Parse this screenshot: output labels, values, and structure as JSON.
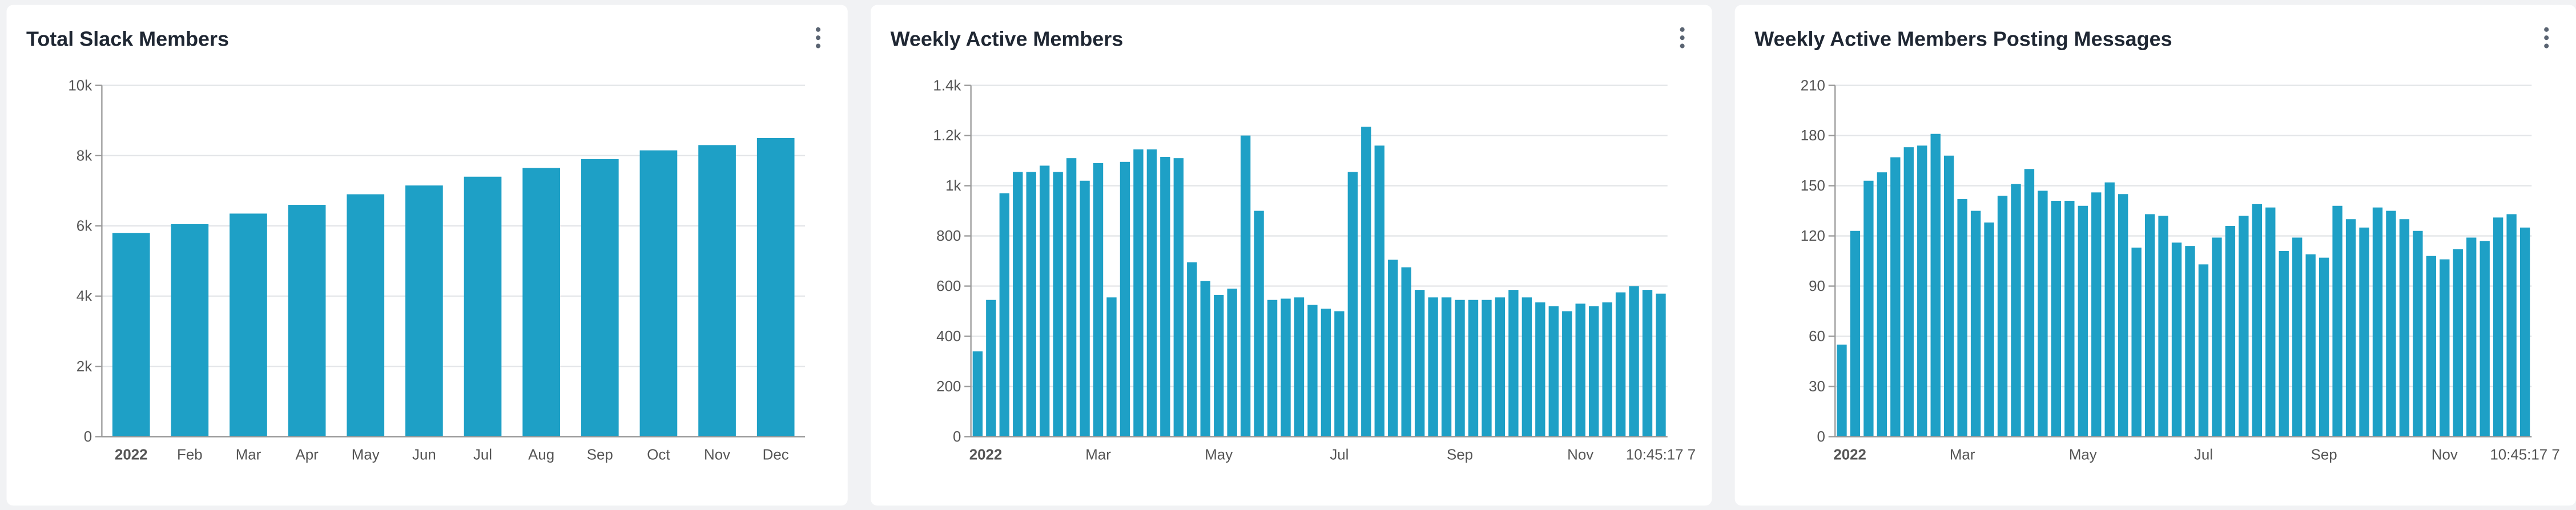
{
  "chart_data": [
    {
      "type": "bar",
      "title": "Total Slack Members",
      "categories": [
        "2022",
        "Feb",
        "Mar",
        "Apr",
        "May",
        "Jun",
        "Jul",
        "Aug",
        "Sep",
        "Oct",
        "Nov",
        "Dec"
      ],
      "values": [
        5800,
        6050,
        6350,
        6600,
        6900,
        7150,
        7400,
        7650,
        7900,
        8150,
        8300,
        8500
      ],
      "color": "#1ea0c6",
      "ylim": [
        0,
        10000
      ],
      "yticks": [
        0,
        {
          "value": 2000,
          "label": "2k"
        },
        {
          "value": 4000,
          "label": "4k"
        },
        {
          "value": 6000,
          "label": "6k"
        },
        {
          "value": 8000,
          "label": "8k"
        },
        {
          "value": 10000,
          "label": "10k"
        }
      ],
      "grid": true
    },
    {
      "type": "bar",
      "title": "Weekly Active Members",
      "categories": [
        "2022",
        null,
        null,
        null,
        null,
        null,
        null,
        null,
        null,
        "Mar",
        null,
        null,
        null,
        null,
        null,
        null,
        null,
        null,
        "May",
        null,
        null,
        null,
        null,
        null,
        null,
        null,
        null,
        "Jul",
        null,
        null,
        null,
        null,
        null,
        null,
        null,
        null,
        "Sep",
        null,
        null,
        null,
        null,
        null,
        null,
        null,
        null,
        "Nov",
        null,
        null,
        null,
        null,
        null,
        "10:45:17 7"
      ],
      "values": [
        340,
        545,
        970,
        1055,
        1055,
        1080,
        1055,
        1110,
        1020,
        1090,
        555,
        1095,
        1145,
        1145,
        1115,
        1110,
        695,
        620,
        565,
        590,
        1200,
        900,
        545,
        550,
        555,
        525,
        510,
        500,
        1055,
        1235,
        1160,
        705,
        675,
        585,
        555,
        555,
        545,
        545,
        545,
        555,
        585,
        555,
        535,
        520,
        500,
        530,
        520,
        535,
        575,
        600,
        585,
        570
      ],
      "color": "#1ea0c6",
      "ylim": [
        0,
        1400
      ],
      "yticks": [
        0,
        200,
        400,
        600,
        800,
        {
          "value": 1000,
          "label": "1k"
        },
        {
          "value": 1200,
          "label": "1.2k"
        },
        {
          "value": 1400,
          "label": "1.4k"
        }
      ],
      "grid": true
    },
    {
      "type": "bar",
      "title": "Weekly Active Members Posting Messages",
      "categories": [
        "2022",
        null,
        null,
        null,
        null,
        null,
        null,
        null,
        null,
        "Mar",
        null,
        null,
        null,
        null,
        null,
        null,
        null,
        null,
        "May",
        null,
        null,
        null,
        null,
        null,
        null,
        null,
        null,
        "Jul",
        null,
        null,
        null,
        null,
        null,
        null,
        null,
        null,
        "Sep",
        null,
        null,
        null,
        null,
        null,
        null,
        null,
        null,
        "Nov",
        null,
        null,
        null,
        null,
        null,
        "10:45:17 7"
      ],
      "values": [
        55,
        123,
        153,
        158,
        167,
        173,
        174,
        181,
        168,
        142,
        135,
        128,
        144,
        151,
        160,
        147,
        141,
        141,
        138,
        146,
        152,
        145,
        113,
        133,
        132,
        116,
        114,
        103,
        119,
        126,
        132,
        139,
        137,
        111,
        119,
        109,
        107,
        138,
        130,
        125,
        137,
        135,
        130,
        123,
        108,
        106,
        112,
        119,
        117,
        131,
        133,
        125
      ],
      "color": "#1ea0c6",
      "ylim": [
        0,
        210
      ],
      "yticks": [
        0,
        30,
        60,
        90,
        120,
        150,
        180,
        210
      ],
      "grid": true
    }
  ]
}
